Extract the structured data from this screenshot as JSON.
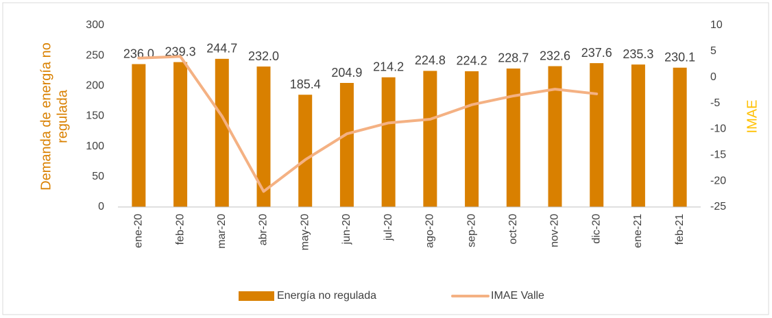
{
  "chart_data": {
    "type": "bar",
    "categories": [
      "ene-20",
      "feb-20",
      "mar-20",
      "abr-20",
      "may-20",
      "jun-20",
      "jul-20",
      "ago-20",
      "sep-20",
      "oct-20",
      "nov-20",
      "dic-20",
      "ene-21",
      "feb-21"
    ],
    "ylabel": [
      "Demanda de energía no",
      "regulada"
    ],
    "y2label": "IMAE",
    "ylim": [
      0,
      300
    ],
    "yticks": [
      0,
      50,
      100,
      150,
      200,
      250,
      300
    ],
    "y2lim": [
      -25,
      10
    ],
    "y2ticks": [
      -25,
      -20,
      -15,
      -10,
      -5,
      0,
      5,
      10
    ],
    "series": [
      {
        "name": "Energía no regulada",
        "type": "bar",
        "color": "#d98000",
        "values": [
          236.0,
          239.3,
          244.7,
          232.0,
          185.4,
          204.9,
          214.2,
          224.8,
          224.2,
          228.7,
          232.6,
          237.6,
          235.3,
          230.1
        ],
        "value_labels": [
          "236.0",
          "239.3",
          "244.7",
          "232.0",
          "185.4",
          "204.9",
          "214.2",
          "224.8",
          "224.2",
          "228.7",
          "232.6",
          "237.6",
          "235.3",
          "230.1"
        ]
      },
      {
        "name": "IMAE Valle",
        "type": "line",
        "axis": "y2",
        "color": "#f4b183",
        "values": [
          3.7,
          4.0,
          -7.5,
          -22.0,
          -15.9,
          -10.9,
          -8.8,
          -8.1,
          -5.3,
          -3.6,
          -2.3,
          -3.2,
          null,
          null
        ]
      }
    ]
  }
}
